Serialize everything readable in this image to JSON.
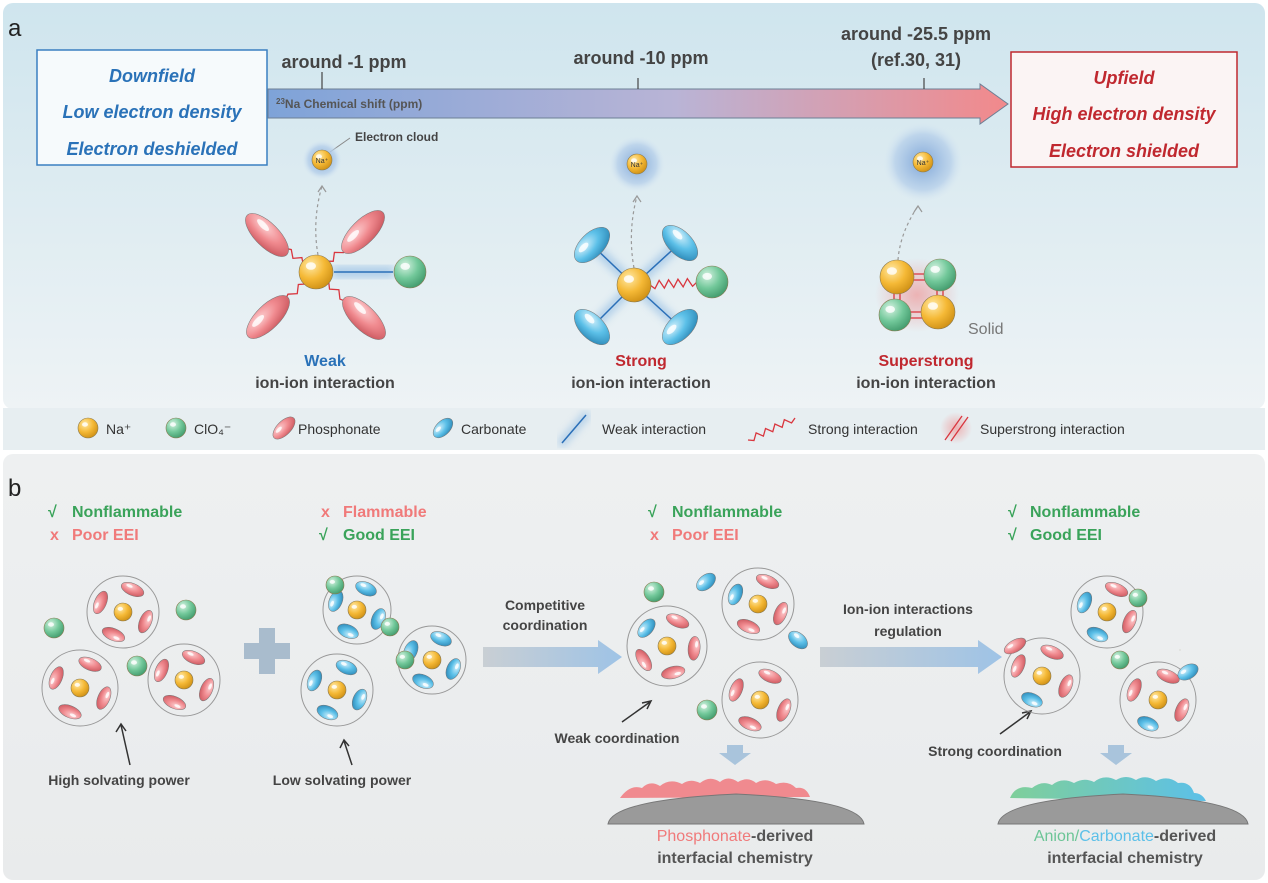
{
  "panel_labels": {
    "a": "a",
    "b": "b"
  },
  "panel_a": {
    "left_box": [
      "Downfield",
      "Low electron density",
      "Electron deshielded"
    ],
    "right_box": [
      "Upfield",
      "High electron density",
      "Electron shielded"
    ],
    "axis": {
      "superscript": "23",
      "label": "Na Chemical shift (ppm)"
    },
    "markers": [
      {
        "label": "around -1 ppm"
      },
      {
        "label": "around -10 ppm"
      },
      {
        "label": "around -25.5 ppm",
        "note": "(ref.30, 31)"
      }
    ],
    "electron_cloud": "Electron cloud",
    "na_label": "Na⁺",
    "solid": "Solid",
    "interactions": [
      {
        "strength": "Weak",
        "label": "ion-ion interaction"
      },
      {
        "strength": "Strong",
        "label": "ion-ion interaction"
      },
      {
        "strength": "Superstrong",
        "label": "ion-ion interaction"
      }
    ]
  },
  "legend": [
    {
      "icon": "na-ion",
      "label": "Na⁺"
    },
    {
      "icon": "perchlorate-ion",
      "label": "ClO₄⁻"
    },
    {
      "icon": "phosphonate",
      "label": "Phosphonate"
    },
    {
      "icon": "carbonate",
      "label": "Carbonate"
    },
    {
      "icon": "weak-line",
      "label": "Weak interaction"
    },
    {
      "icon": "strong-zigzag",
      "label": "Strong interaction"
    },
    {
      "icon": "superstrong-double-line",
      "label": "Superstrong interaction"
    }
  ],
  "panel_b": {
    "columns": [
      {
        "props": [
          {
            "mark": "√",
            "text": "Nonflammable",
            "ok": true
          },
          {
            "mark": "x",
            "text": "Poor EEI",
            "ok": false
          }
        ],
        "annotation": "High solvating power"
      },
      {
        "props": [
          {
            "mark": "x",
            "text": "Flammable",
            "ok": false
          },
          {
            "mark": "√",
            "text": "Good EEI",
            "ok": true
          }
        ],
        "annotation": "Low solvating power"
      },
      {
        "props": [
          {
            "mark": "√",
            "text": "Nonflammable",
            "ok": true
          },
          {
            "mark": "x",
            "text": "Poor EEI",
            "ok": false
          }
        ],
        "annotation": "Weak coordination"
      },
      {
        "props": [
          {
            "mark": "√",
            "text": "Nonflammable",
            "ok": true
          },
          {
            "mark": "√",
            "text": "Good EEI",
            "ok": true
          }
        ],
        "annotation": "Strong coordination"
      }
    ],
    "arrows": [
      {
        "line1": "Competitive",
        "line2": "coordination"
      },
      {
        "line1": "Ion-ion interactions",
        "line2": "regulation"
      }
    ],
    "interphases": [
      {
        "part1": "Phosphonate",
        "part2": "",
        "part3": "-derived",
        "line2": "interfacial chemistry"
      },
      {
        "part1": "Anion/",
        "part2": "Carbonate",
        "part3": "-derived",
        "line2": "interfacial chemistry"
      }
    ]
  },
  "colors": {
    "blue_text": "#2a72b8",
    "red_text": "#c0282f",
    "good": "#3aa35a",
    "bad": "#f07a7a",
    "na": "#f2b632",
    "clo4": "#6cc596",
    "phosphonate": "#f08a8f",
    "carbonate": "#5cc0e8"
  }
}
